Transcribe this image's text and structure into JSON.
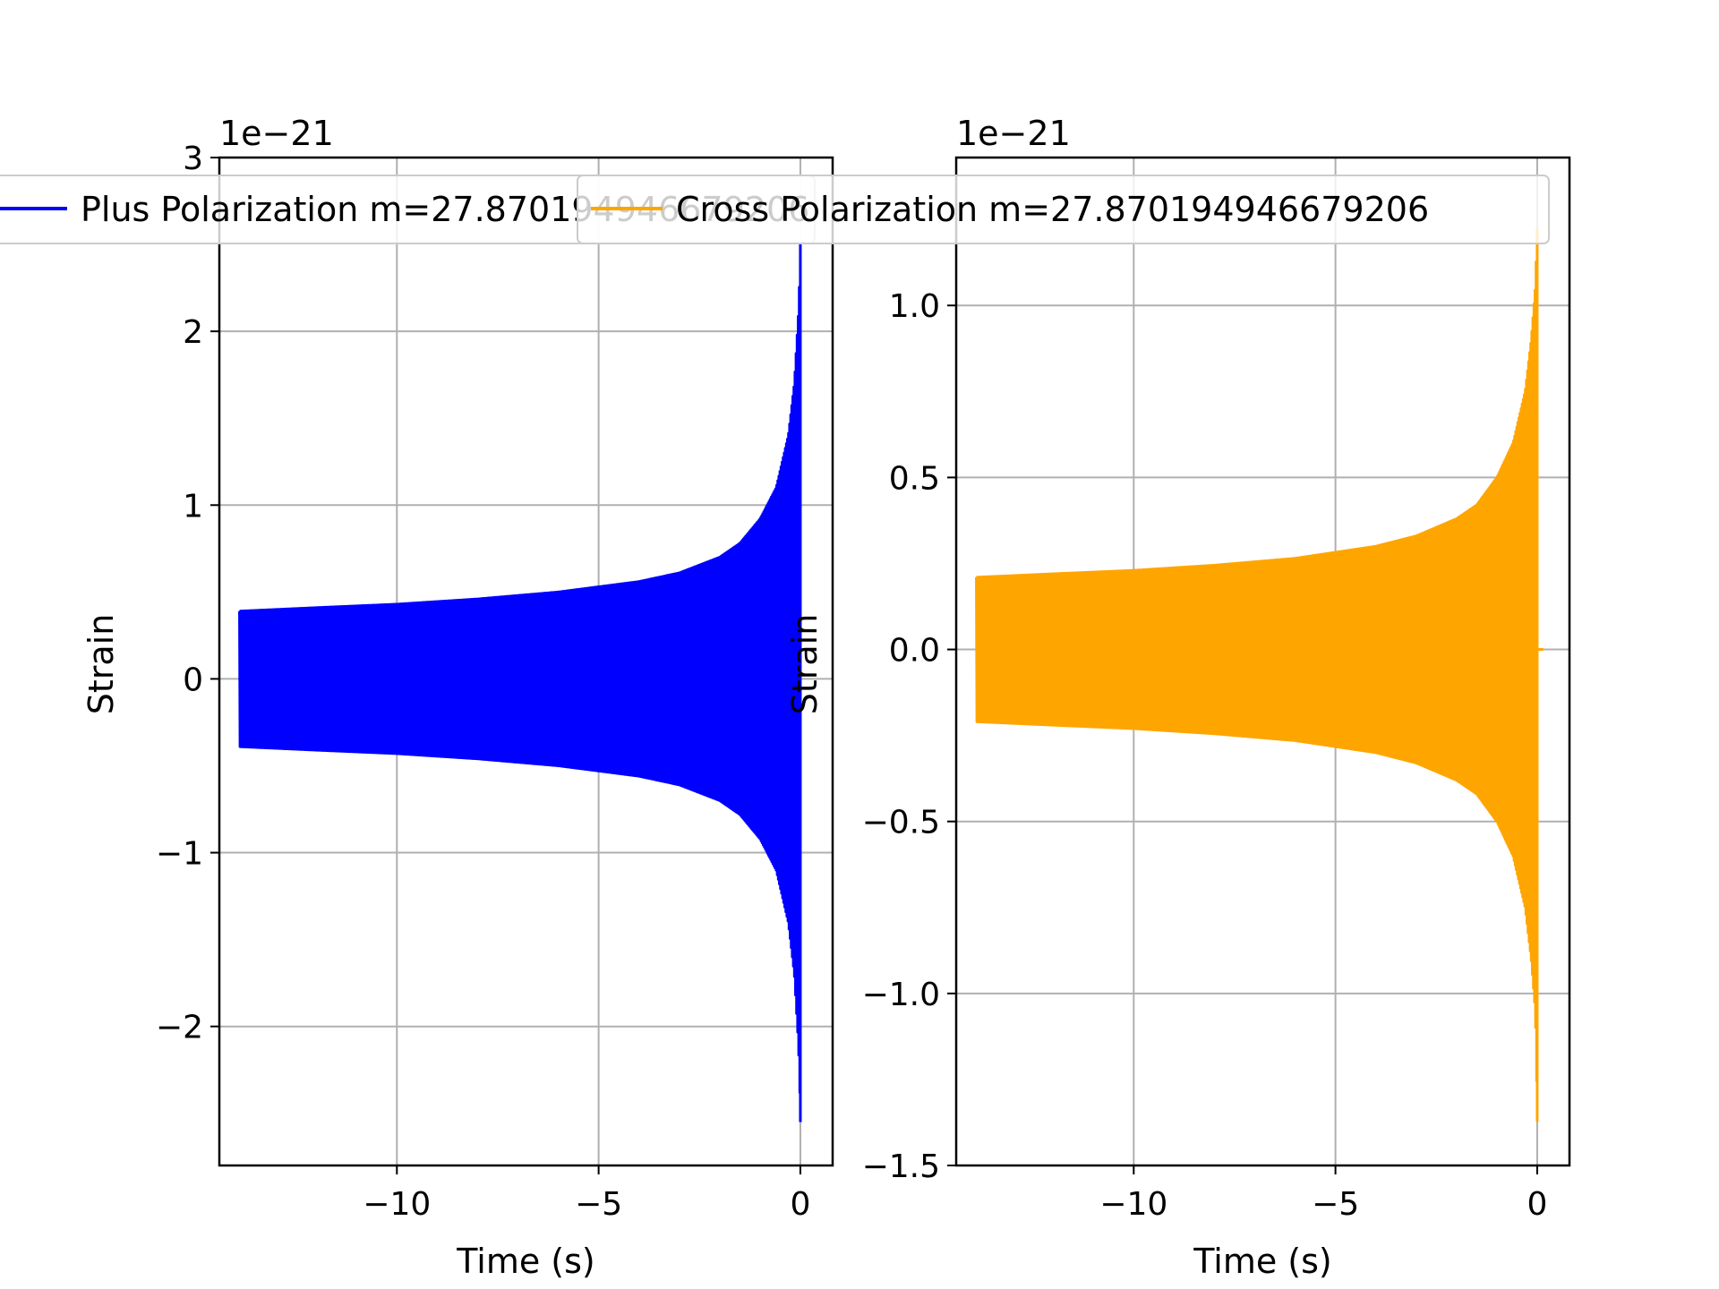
{
  "chart_data": [
    {
      "type": "line",
      "title": "",
      "xlabel": "Time (s)",
      "ylabel": "Strain",
      "offset_text": "1e−21",
      "xlim": [
        -14.4,
        0.8
      ],
      "ylim": [
        -2.8,
        3.0
      ],
      "xticks": [
        -10,
        -5,
        0
      ],
      "xtick_labels": [
        "−10",
        "−5",
        "0"
      ],
      "yticks": [
        -2,
        -1,
        0,
        1,
        2,
        3
      ],
      "ytick_labels": [
        "−2",
        "−1",
        "0",
        "1",
        "2",
        "3"
      ],
      "grid": true,
      "legend_position": "top",
      "color": "#0000ff",
      "series": [
        {
          "name": "Plus Polarization m=27.870194946679206",
          "envelope_t": [
            -13.9,
            -12,
            -10,
            -8,
            -6,
            -4,
            -3,
            -2,
            -1.5,
            -1,
            -0.6,
            -0.3,
            -0.15,
            -0.05,
            -0.02,
            0.0
          ],
          "envelope_upper": [
            0.39,
            0.41,
            0.43,
            0.46,
            0.5,
            0.56,
            0.61,
            0.7,
            0.78,
            0.92,
            1.1,
            1.4,
            1.7,
            2.1,
            2.3,
            2.5
          ],
          "envelope_lower": [
            -0.39,
            -0.41,
            -0.43,
            -0.46,
            -0.5,
            -0.56,
            -0.61,
            -0.7,
            -0.78,
            -0.92,
            -1.1,
            -1.4,
            -1.7,
            -2.1,
            -2.3,
            -2.55
          ]
        }
      ]
    },
    {
      "type": "line",
      "title": "",
      "xlabel": "Time (s)",
      "ylabel": "Strain",
      "offset_text": "1e−21",
      "xlim": [
        -14.4,
        0.8
      ],
      "ylim": [
        -1.5,
        1.43
      ],
      "xticks": [
        -10,
        -5,
        0
      ],
      "xtick_labels": [
        "−10",
        "−5",
        "0"
      ],
      "yticks": [
        -1.5,
        -1.0,
        -0.5,
        0.0,
        0.5,
        1.0
      ],
      "ytick_labels": [
        "−1.5",
        "−1.0",
        "−0.5",
        "0.0",
        "0.5",
        "1.0"
      ],
      "grid": true,
      "legend_position": "top",
      "color": "#ffa500",
      "series": [
        {
          "name": "Cross Polarization m=27.870194946679206",
          "envelope_t": [
            -13.9,
            -12,
            -10,
            -8,
            -6,
            -4,
            -3,
            -2,
            -1.5,
            -1,
            -0.6,
            -0.3,
            -0.15,
            -0.05,
            -0.02,
            0.0
          ],
          "envelope_upper": [
            0.21,
            0.22,
            0.23,
            0.245,
            0.265,
            0.3,
            0.33,
            0.38,
            0.42,
            0.5,
            0.6,
            0.75,
            0.9,
            1.05,
            1.15,
            1.22
          ],
          "envelope_lower": [
            -0.21,
            -0.22,
            -0.23,
            -0.245,
            -0.265,
            -0.3,
            -0.33,
            -0.38,
            -0.42,
            -0.5,
            -0.6,
            -0.75,
            -0.9,
            -1.05,
            -1.2,
            -1.37
          ]
        }
      ]
    }
  ]
}
